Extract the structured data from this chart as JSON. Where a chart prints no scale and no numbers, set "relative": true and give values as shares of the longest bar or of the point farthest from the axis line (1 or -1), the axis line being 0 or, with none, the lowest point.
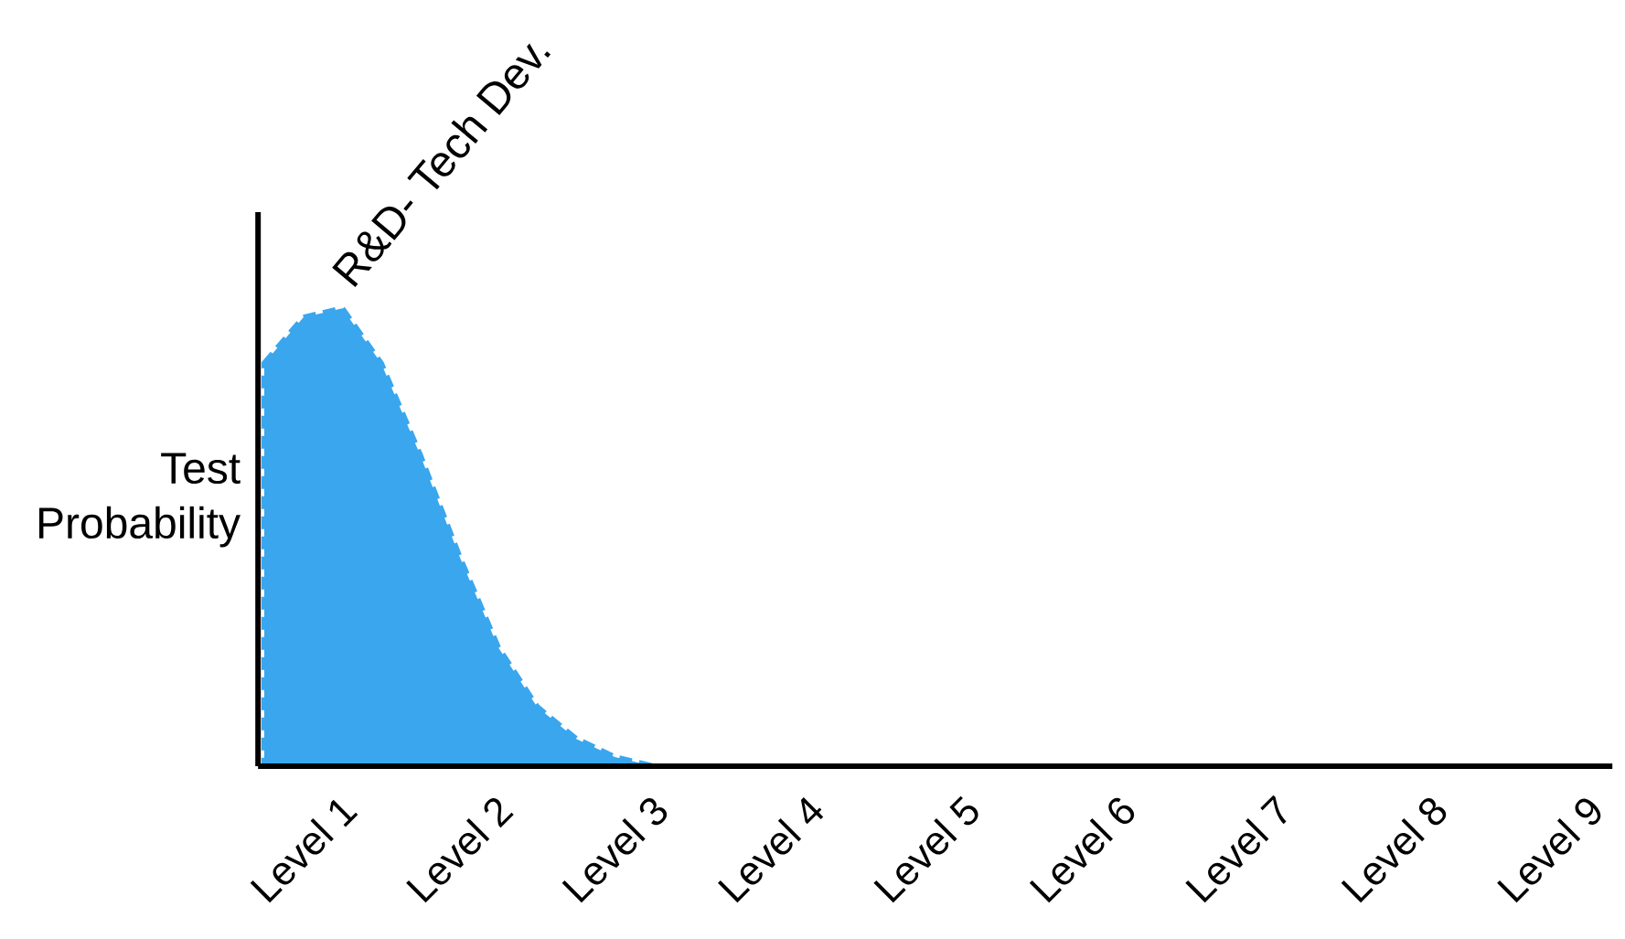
{
  "chart_data": {
    "type": "area",
    "relative": true,
    "ylabel": "Test Probability",
    "categories": [
      null,
      "Level 1",
      null,
      null,
      null,
      "Level 2",
      null,
      null,
      null,
      "Level 3",
      null,
      null,
      null,
      "Level 4",
      null,
      null,
      null,
      "Level 5",
      null,
      null,
      null,
      "Level 6",
      null,
      null,
      null,
      "Level 7",
      null,
      null,
      null,
      "Level 8",
      null,
      null,
      null,
      "Level 9"
    ],
    "line_style": "dashed",
    "series": [
      {
        "name": "R&D- Tech Dev.",
        "color": "#3aa6ee",
        "values": [
          0.88,
          0.98,
          1.0,
          0.88,
          0.68,
          0.46,
          0.26,
          0.13,
          0.06,
          0.02,
          0,
          0,
          0,
          0,
          0,
          0,
          0,
          0,
          0,
          0,
          0,
          0,
          0,
          0,
          0,
          0,
          0,
          0,
          0,
          0,
          0,
          0,
          0,
          0
        ]
      }
    ]
  }
}
